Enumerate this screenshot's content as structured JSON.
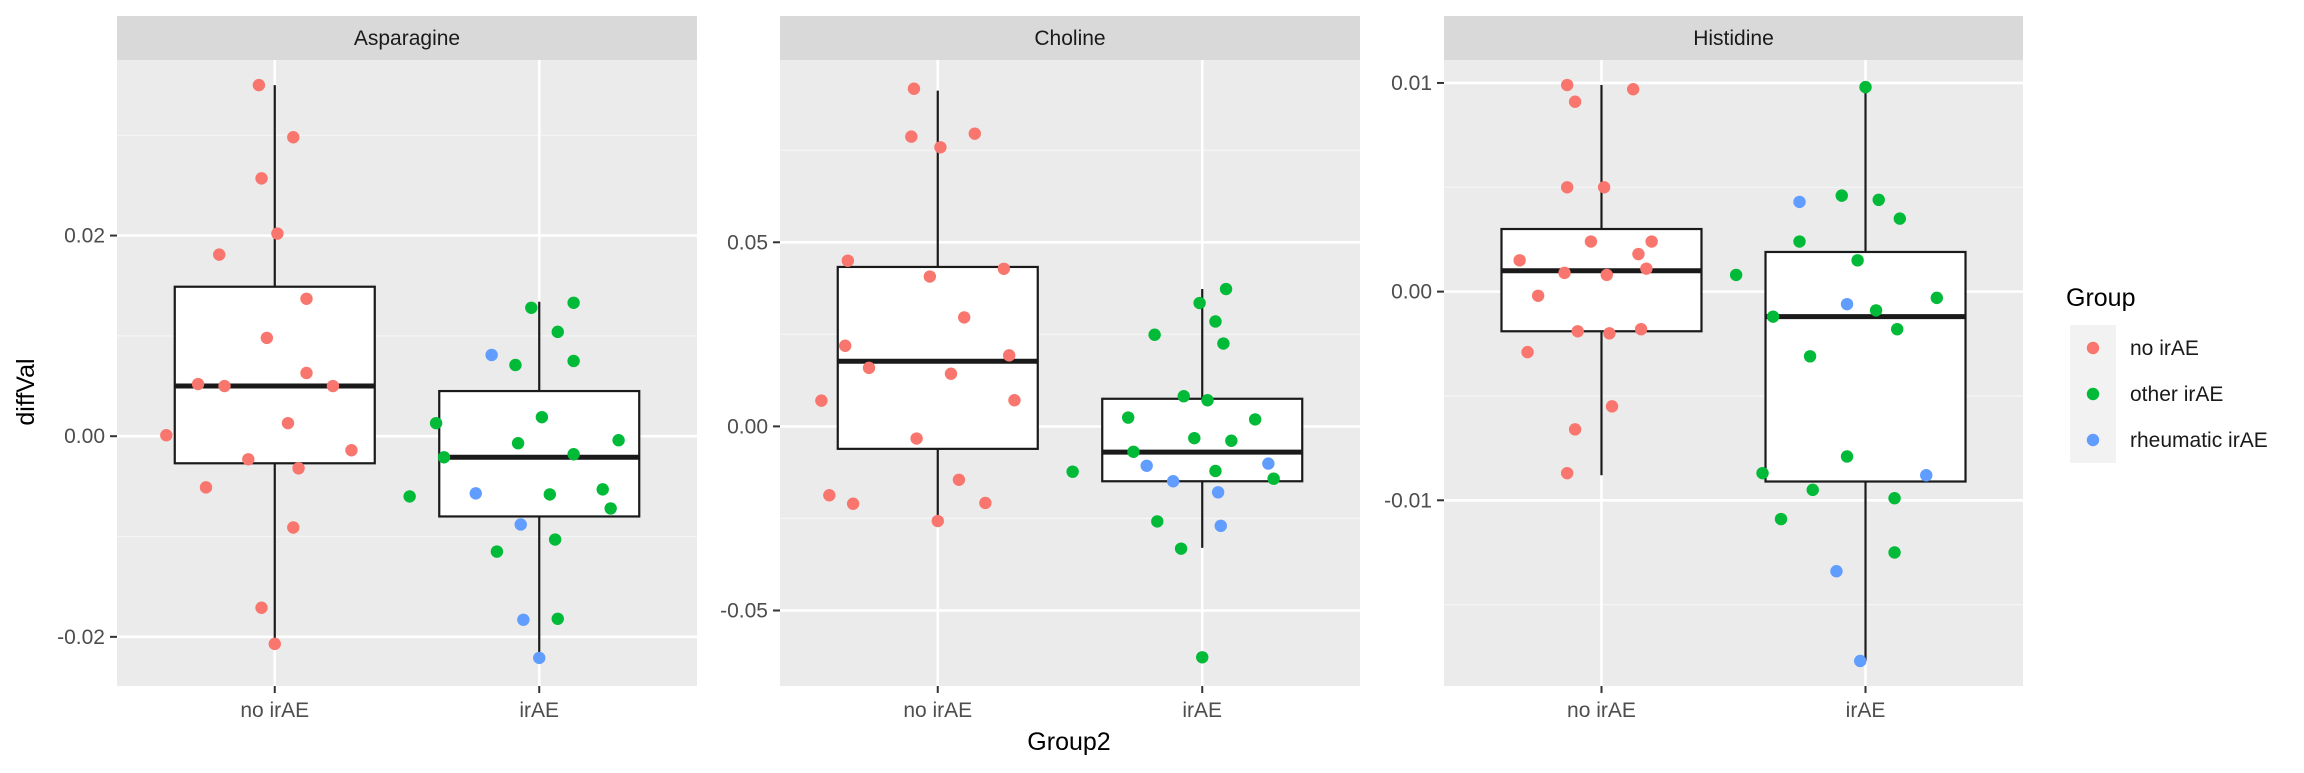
{
  "chart_data": {
    "type": "boxplot-faceted",
    "xlabel": "Group2",
    "ylabel": "diffVal",
    "categories": [
      "no irAE",
      "irAE"
    ],
    "legend": {
      "title": "Group",
      "placement": "right",
      "entries": [
        {
          "label": "no irAE",
          "color": "#F8766D"
        },
        {
          "label": "other irAE",
          "color": "#00BA38"
        },
        {
          "label": "rheumatic irAE",
          "color": "#619CFF"
        }
      ]
    },
    "facets": [
      {
        "title": "Asparagine",
        "ylim": [
          -0.0249,
          0.0375
        ],
        "yticks": [
          {
            "v": -0.02,
            "label": "-0.02"
          },
          {
            "v": 0.0,
            "label": "0.00"
          },
          {
            "v": 0.02,
            "label": "0.02"
          }
        ],
        "boxes": [
          {
            "category": "no irAE",
            "min": -0.0208,
            "q1": -0.0027,
            "median": 0.005,
            "q3": 0.0149,
            "max": 0.035
          },
          {
            "category": "irAE",
            "min": -0.0221,
            "q1": -0.008,
            "median": -0.0021,
            "q3": 0.0045,
            "max": 0.0134
          }
        ],
        "points": [
          {
            "x": 0.94,
            "y": 0.035,
            "g": "no irAE"
          },
          {
            "x": 1.07,
            "y": 0.0298,
            "g": "no irAE"
          },
          {
            "x": 0.95,
            "y": 0.0257,
            "g": "no irAE"
          },
          {
            "x": 1.01,
            "y": 0.0202,
            "g": "no irAE"
          },
          {
            "x": 0.79,
            "y": 0.0181,
            "g": "no irAE"
          },
          {
            "x": 1.12,
            "y": 0.0137,
            "g": "no irAE"
          },
          {
            "x": 0.97,
            "y": 0.0098,
            "g": "no irAE"
          },
          {
            "x": 1.12,
            "y": 0.0063,
            "g": "no irAE"
          },
          {
            "x": 0.71,
            "y": 0.0052,
            "g": "no irAE"
          },
          {
            "x": 0.81,
            "y": 0.005,
            "g": "no irAE"
          },
          {
            "x": 1.22,
            "y": 0.005,
            "g": "no irAE"
          },
          {
            "x": 1.05,
            "y": 0.0013,
            "g": "no irAE"
          },
          {
            "x": 0.59,
            "y": 0.0001,
            "g": "no irAE"
          },
          {
            "x": 1.29,
            "y": -0.0014,
            "g": "no irAE"
          },
          {
            "x": 0.9,
            "y": -0.0023,
            "g": "no irAE"
          },
          {
            "x": 1.09,
            "y": -0.0032,
            "g": "no irAE"
          },
          {
            "x": 0.74,
            "y": -0.0051,
            "g": "no irAE"
          },
          {
            "x": 1.07,
            "y": -0.0091,
            "g": "no irAE"
          },
          {
            "x": 0.95,
            "y": -0.0171,
            "g": "no irAE"
          },
          {
            "x": 1.0,
            "y": -0.0207,
            "g": "no irAE"
          },
          {
            "x": 2.13,
            "y": 0.0133,
            "g": "other irAE"
          },
          {
            "x": 1.97,
            "y": 0.0128,
            "g": "other irAE"
          },
          {
            "x": 2.07,
            "y": 0.0104,
            "g": "other irAE"
          },
          {
            "x": 1.91,
            "y": 0.0071,
            "g": "other irAE"
          },
          {
            "x": 2.13,
            "y": 0.0075,
            "g": "other irAE"
          },
          {
            "x": 2.01,
            "y": 0.0019,
            "g": "other irAE"
          },
          {
            "x": 1.61,
            "y": 0.0013,
            "g": "other irAE"
          },
          {
            "x": 1.92,
            "y": -0.0007,
            "g": "other irAE"
          },
          {
            "x": 2.3,
            "y": -0.0004,
            "g": "other irAE"
          },
          {
            "x": 1.64,
            "y": -0.0021,
            "g": "other irAE"
          },
          {
            "x": 2.13,
            "y": -0.0018,
            "g": "other irAE"
          },
          {
            "x": 1.51,
            "y": -0.006,
            "g": "other irAE"
          },
          {
            "x": 2.04,
            "y": -0.0058,
            "g": "other irAE"
          },
          {
            "x": 2.24,
            "y": -0.0053,
            "g": "other irAE"
          },
          {
            "x": 2.27,
            "y": -0.0072,
            "g": "other irAE"
          },
          {
            "x": 2.06,
            "y": -0.0103,
            "g": "other irAE"
          },
          {
            "x": 1.84,
            "y": -0.0115,
            "g": "other irAE"
          },
          {
            "x": 2.07,
            "y": -0.0182,
            "g": "other irAE"
          },
          {
            "x": 1.82,
            "y": 0.0081,
            "g": "rheumatic irAE"
          },
          {
            "x": 1.76,
            "y": -0.0057,
            "g": "rheumatic irAE"
          },
          {
            "x": 1.93,
            "y": -0.0088,
            "g": "rheumatic irAE"
          },
          {
            "x": 1.94,
            "y": -0.0183,
            "g": "rheumatic irAE"
          },
          {
            "x": 2.0,
            "y": -0.0221,
            "g": "rheumatic irAE"
          }
        ]
      },
      {
        "title": "Choline",
        "ylim": [
          -0.0705,
          0.0995
        ],
        "yticks": [
          {
            "v": -0.05,
            "label": "-0.05"
          },
          {
            "v": 0.0,
            "label": "0.00"
          },
          {
            "v": 0.05,
            "label": "0.05"
          }
        ],
        "boxes": [
          {
            "category": "no irAE",
            "min": -0.0259,
            "q1": -0.0061,
            "median": 0.0177,
            "q3": 0.0433,
            "max": 0.0912
          },
          {
            "category": "irAE",
            "min": -0.033,
            "q1": -0.0149,
            "median": -0.007,
            "q3": 0.0075,
            "max": 0.0373
          }
        ],
        "points": [
          {
            "x": 0.91,
            "y": 0.0917,
            "g": "no irAE"
          },
          {
            "x": 0.9,
            "y": 0.0787,
            "g": "no irAE"
          },
          {
            "x": 1.14,
            "y": 0.0795,
            "g": "no irAE"
          },
          {
            "x": 1.01,
            "y": 0.0758,
            "g": "no irAE"
          },
          {
            "x": 0.66,
            "y": 0.045,
            "g": "no irAE"
          },
          {
            "x": 0.97,
            "y": 0.0407,
            "g": "no irAE"
          },
          {
            "x": 1.25,
            "y": 0.0428,
            "g": "no irAE"
          },
          {
            "x": 1.1,
            "y": 0.0296,
            "g": "no irAE"
          },
          {
            "x": 0.65,
            "y": 0.0219,
            "g": "no irAE"
          },
          {
            "x": 1.27,
            "y": 0.0193,
            "g": "no irAE"
          },
          {
            "x": 0.74,
            "y": 0.0159,
            "g": "no irAE"
          },
          {
            "x": 1.05,
            "y": 0.0143,
            "g": "no irAE"
          },
          {
            "x": 0.56,
            "y": 0.007,
            "g": "no irAE"
          },
          {
            "x": 1.29,
            "y": 0.0071,
            "g": "no irAE"
          },
          {
            "x": 0.92,
            "y": -0.0033,
            "g": "no irAE"
          },
          {
            "x": 1.08,
            "y": -0.0145,
            "g": "no irAE"
          },
          {
            "x": 0.59,
            "y": -0.0187,
            "g": "no irAE"
          },
          {
            "x": 0.68,
            "y": -0.021,
            "g": "no irAE"
          },
          {
            "x": 1.18,
            "y": -0.0208,
            "g": "no irAE"
          },
          {
            "x": 1.0,
            "y": -0.0257,
            "g": "no irAE"
          },
          {
            "x": 2.09,
            "y": 0.0373,
            "g": "other irAE"
          },
          {
            "x": 1.99,
            "y": 0.0335,
            "g": "other irAE"
          },
          {
            "x": 2.05,
            "y": 0.0285,
            "g": "other irAE"
          },
          {
            "x": 1.82,
            "y": 0.0249,
            "g": "other irAE"
          },
          {
            "x": 2.08,
            "y": 0.0225,
            "g": "other irAE"
          },
          {
            "x": 1.93,
            "y": 0.0082,
            "g": "other irAE"
          },
          {
            "x": 2.02,
            "y": 0.0071,
            "g": "other irAE"
          },
          {
            "x": 1.72,
            "y": 0.0024,
            "g": "other irAE"
          },
          {
            "x": 2.2,
            "y": 0.0019,
            "g": "other irAE"
          },
          {
            "x": 1.97,
            "y": -0.0032,
            "g": "other irAE"
          },
          {
            "x": 2.11,
            "y": -0.0039,
            "g": "other irAE"
          },
          {
            "x": 1.74,
            "y": -0.0069,
            "g": "other irAE"
          },
          {
            "x": 1.51,
            "y": -0.0123,
            "g": "other irAE"
          },
          {
            "x": 2.05,
            "y": -0.0121,
            "g": "other irAE"
          },
          {
            "x": 2.27,
            "y": -0.0142,
            "g": "other irAE"
          },
          {
            "x": 1.83,
            "y": -0.0258,
            "g": "other irAE"
          },
          {
            "x": 1.92,
            "y": -0.0332,
            "g": "other irAE"
          },
          {
            "x": 2.0,
            "y": -0.0627,
            "g": "other irAE"
          },
          {
            "x": 1.79,
            "y": -0.0107,
            "g": "rheumatic irAE"
          },
          {
            "x": 1.89,
            "y": -0.0149,
            "g": "rheumatic irAE"
          },
          {
            "x": 2.25,
            "y": -0.0101,
            "g": "rheumatic irAE"
          },
          {
            "x": 2.06,
            "y": -0.0179,
            "g": "rheumatic irAE"
          },
          {
            "x": 2.07,
            "y": -0.027,
            "g": "rheumatic irAE"
          }
        ]
      },
      {
        "title": "Histidine",
        "ylim": [
          -0.0189,
          0.0111
        ],
        "yticks": [
          {
            "v": -0.01,
            "label": "-0.01"
          },
          {
            "v": 0.0,
            "label": "0.00"
          },
          {
            "v": 0.01,
            "label": "0.01"
          }
        ],
        "boxes": [
          {
            "category": "no irAE",
            "min": -0.0088,
            "q1": -0.0019,
            "median": 0.001,
            "q3": 0.003,
            "max": 0.0099
          },
          {
            "category": "irAE",
            "min": -0.0177,
            "q1": -0.0091,
            "median": -0.0012,
            "q3": 0.0019,
            "max": 0.0098
          }
        ],
        "points": [
          {
            "x": 0.87,
            "y": 0.0099,
            "g": "no irAE"
          },
          {
            "x": 1.12,
            "y": 0.0097,
            "g": "no irAE"
          },
          {
            "x": 0.9,
            "y": 0.0091,
            "g": "no irAE"
          },
          {
            "x": 0.87,
            "y": 0.005,
            "g": "no irAE"
          },
          {
            "x": 1.01,
            "y": 0.005,
            "g": "no irAE"
          },
          {
            "x": 0.96,
            "y": 0.0024,
            "g": "no irAE"
          },
          {
            "x": 1.19,
            "y": 0.0024,
            "g": "no irAE"
          },
          {
            "x": 1.14,
            "y": 0.0018,
            "g": "no irAE"
          },
          {
            "x": 0.69,
            "y": 0.0015,
            "g": "no irAE"
          },
          {
            "x": 1.17,
            "y": 0.0011,
            "g": "no irAE"
          },
          {
            "x": 0.86,
            "y": 0.0009,
            "g": "no irAE"
          },
          {
            "x": 1.02,
            "y": 0.0008,
            "g": "no irAE"
          },
          {
            "x": 0.76,
            "y": -0.0002,
            "g": "no irAE"
          },
          {
            "x": 0.91,
            "y": -0.0019,
            "g": "no irAE"
          },
          {
            "x": 1.03,
            "y": -0.002,
            "g": "no irAE"
          },
          {
            "x": 1.15,
            "y": -0.0018,
            "g": "no irAE"
          },
          {
            "x": 0.72,
            "y": -0.0029,
            "g": "no irAE"
          },
          {
            "x": 1.04,
            "y": -0.0055,
            "g": "no irAE"
          },
          {
            "x": 0.9,
            "y": -0.0066,
            "g": "no irAE"
          },
          {
            "x": 0.87,
            "y": -0.0087,
            "g": "no irAE"
          },
          {
            "x": 2.0,
            "y": 0.0098,
            "g": "other irAE"
          },
          {
            "x": 1.91,
            "y": 0.0046,
            "g": "other irAE"
          },
          {
            "x": 2.05,
            "y": 0.0044,
            "g": "other irAE"
          },
          {
            "x": 2.13,
            "y": 0.0035,
            "g": "other irAE"
          },
          {
            "x": 1.75,
            "y": 0.0024,
            "g": "other irAE"
          },
          {
            "x": 1.97,
            "y": 0.0015,
            "g": "other irAE"
          },
          {
            "x": 1.51,
            "y": 0.0008,
            "g": "other irAE"
          },
          {
            "x": 2.27,
            "y": -0.0003,
            "g": "other irAE"
          },
          {
            "x": 2.04,
            "y": -0.0009,
            "g": "other irAE"
          },
          {
            "x": 1.65,
            "y": -0.0012,
            "g": "other irAE"
          },
          {
            "x": 2.12,
            "y": -0.0018,
            "g": "other irAE"
          },
          {
            "x": 1.79,
            "y": -0.0031,
            "g": "other irAE"
          },
          {
            "x": 1.93,
            "y": -0.0079,
            "g": "other irAE"
          },
          {
            "x": 1.61,
            "y": -0.0087,
            "g": "other irAE"
          },
          {
            "x": 1.8,
            "y": -0.0095,
            "g": "other irAE"
          },
          {
            "x": 2.11,
            "y": -0.0099,
            "g": "other irAE"
          },
          {
            "x": 1.68,
            "y": -0.0109,
            "g": "other irAE"
          },
          {
            "x": 2.11,
            "y": -0.0125,
            "g": "other irAE"
          },
          {
            "x": 1.75,
            "y": 0.0043,
            "g": "rheumatic irAE"
          },
          {
            "x": 1.93,
            "y": -0.0006,
            "g": "rheumatic irAE"
          },
          {
            "x": 2.23,
            "y": -0.0088,
            "g": "rheumatic irAE"
          },
          {
            "x": 1.89,
            "y": -0.0134,
            "g": "rheumatic irAE"
          },
          {
            "x": 1.98,
            "y": -0.0177,
            "g": "rheumatic irAE"
          }
        ]
      }
    ]
  }
}
